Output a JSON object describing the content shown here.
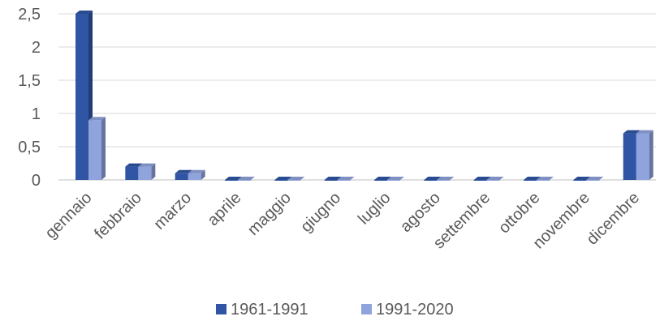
{
  "chart_data": {
    "type": "bar",
    "categories": [
      "gennaio",
      "febbraio",
      "marzo",
      "aprile",
      "maggio",
      "giugno",
      "luglio",
      "agosto",
      "settembre",
      "ottobre",
      "novembre",
      "dicembre"
    ],
    "series": [
      {
        "name": "1961-1991",
        "color": "#2f55a4",
        "values": [
          2.5,
          0.2,
          0.1,
          0,
          0,
          0,
          0,
          0,
          0,
          0,
          0,
          0.7
        ]
      },
      {
        "name": "1991-2020",
        "color": "#8fa3dc",
        "values": [
          0.9,
          0.2,
          0.1,
          0,
          0,
          0,
          0,
          0,
          0,
          0,
          0,
          0.7
        ]
      }
    ],
    "yticks": [
      "0",
      "0,5",
      "1",
      "1,5",
      "2",
      "2,5"
    ],
    "ylim": [
      0,
      2.5
    ],
    "grid": true,
    "legend": "bottom-center",
    "style": "3d-clustered-column"
  }
}
